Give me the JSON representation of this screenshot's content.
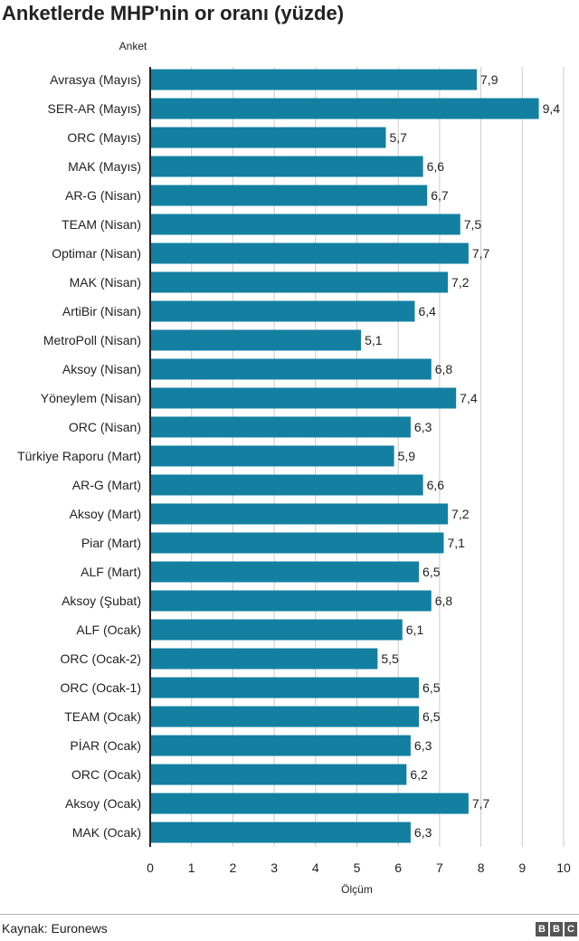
{
  "title": "Anketlerde MHP'nin or oranı (yüzde)",
  "source": "Kaynak: Euronews",
  "logo_letters": [
    "B",
    "B",
    "C"
  ],
  "colors": {
    "bar": "#1380a1",
    "grid": "#cbcbcb",
    "axis": "#222222",
    "text": "#222222"
  },
  "chart_data": {
    "type": "bar",
    "orientation": "horizontal",
    "title": "Anketlerde MHP'nin or oranı (yüzde)",
    "ylabel": "Anket",
    "xlabel": "Ölçüm",
    "xlim": [
      0,
      10
    ],
    "xticks": [
      "0",
      "1",
      "2",
      "3",
      "4",
      "5",
      "6",
      "7",
      "8",
      "9",
      "10"
    ],
    "grid": true,
    "categories": [
      "Avrasya (Mayıs)",
      "SER-AR (Mayıs)",
      "ORC (Mayıs)",
      "MAK (Mayıs)",
      "AR-G (Nisan)",
      "TEAM (Nisan)",
      "Optimar (Nisan)",
      "MAK (Nisan)",
      "ArtiBir (Nisan)",
      "MetroPoll (Nisan)",
      "Aksoy (Nisan)",
      "Yöneylem (Nisan)",
      "ORC (Nisan)",
      "Türkiye Raporu (Mart)",
      "AR-G (Mart)",
      "Aksoy (Mart)",
      "Piar (Mart)",
      "ALF (Mart)",
      "Aksoy (Şubat)",
      "ALF (Ocak)",
      "ORC (Ocak-2)",
      "ORC (Ocak-1)",
      "TEAM (Ocak)",
      "PİAR (Ocak)",
      "ORC (Ocak)",
      "Aksoy (Ocak)",
      "MAK (Ocak)"
    ],
    "values": [
      7.9,
      9.4,
      5.7,
      6.6,
      6.7,
      7.5,
      7.7,
      7.2,
      6.4,
      5.1,
      6.8,
      7.4,
      6.3,
      5.9,
      6.6,
      7.2,
      7.1,
      6.5,
      6.8,
      6.1,
      5.5,
      6.5,
      6.5,
      6.3,
      6.2,
      7.7,
      6.3
    ],
    "value_labels": [
      "7,9",
      "9,4",
      "5,7",
      "6,6",
      "6,7",
      "7,5",
      "7,7",
      "7,2",
      "6,4",
      "5,1",
      "6,8",
      "7,4",
      "6,3",
      "5,9",
      "6,6",
      "7,2",
      "7,1",
      "6,5",
      "6,8",
      "6,1",
      "5,5",
      "6,5",
      "6,5",
      "6,3",
      "6,2",
      "7,7",
      "6,3"
    ]
  }
}
